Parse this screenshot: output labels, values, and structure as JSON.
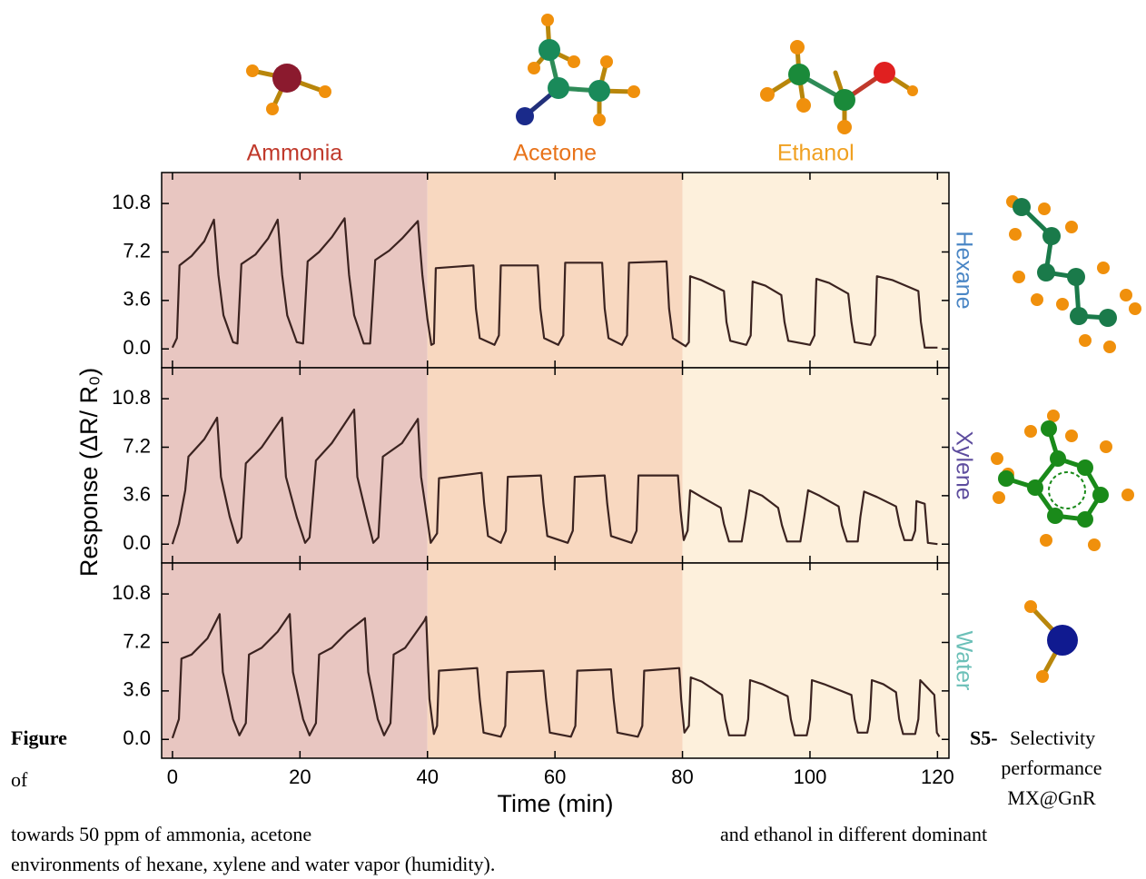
{
  "figure": {
    "ylabel": "Response (ΔR/ R₀)",
    "regions": [
      {
        "label": "Ammonia",
        "color": "#e8c6c1",
        "text_color": "#c0392b"
      },
      {
        "label": "Acetone",
        "color": "#f8d8c0",
        "text_color": "#e8731a"
      },
      {
        "label": "Ethanol",
        "color": "#fdf0dc",
        "text_color": "#f0a020"
      }
    ],
    "boundaries": [
      40,
      80
    ],
    "caption": {
      "figure": "Figure",
      "number": "S5-",
      "parts": [
        "Selectivity",
        "performance",
        "of",
        "MX@GnR",
        "towards 50 ppm of ammonia, acetone",
        "and ethanol in different dominant",
        "environments of hexane, xylene and water vapor (humidity)."
      ]
    }
  },
  "chart_data": [
    {
      "type": "line",
      "x": [
        0,
        0.7,
        1.1,
        3,
        5,
        6.5,
        7.2,
        8,
        9.5,
        10.2,
        10.8,
        13,
        15,
        16.5,
        17.2,
        18,
        19.5,
        20.5,
        21.2,
        23,
        25,
        27,
        27.7,
        28.5,
        30,
        31,
        31.8,
        34,
        36,
        38.5,
        39.2,
        40,
        40.6,
        41,
        41.3,
        47.2,
        47.6,
        48.2,
        50.5,
        51.2,
        51.5,
        57.3,
        57.7,
        58.3,
        60.5,
        61.3,
        61.6,
        67.4,
        67.8,
        68.4,
        70.5,
        71.3,
        71.6,
        77.5,
        77.9,
        78.5,
        80.5,
        81,
        81.2,
        83,
        86.5,
        86.9,
        87.5,
        90,
        90.7,
        91,
        93,
        95.5,
        96,
        96.6,
        100,
        100.7,
        101,
        103,
        106,
        106.5,
        107,
        109.5,
        110.2,
        110.5,
        113,
        117,
        117.4,
        118,
        120
      ],
      "series": [
        {
          "name": "Hexane",
          "color": "#3b2320",
          "label_color": "#4a86c5",
          "values": [
            0.1,
            0.8,
            6.2,
            6.9,
            8,
            9.6,
            5.5,
            2.5,
            0.5,
            0.4,
            6.3,
            7,
            8.2,
            9.6,
            5.5,
            2.5,
            0.5,
            0.4,
            6.5,
            7.2,
            8.3,
            9.7,
            5.5,
            2.5,
            0.4,
            0.4,
            6.6,
            7.3,
            8.2,
            9.5,
            5.5,
            2.2,
            0.3,
            0.4,
            6.0,
            6.2,
            3,
            0.8,
            0.3,
            1,
            6.2,
            6.2,
            3,
            0.8,
            0.3,
            1,
            6.4,
            6.4,
            3,
            0.8,
            0.3,
            1,
            6.4,
            6.5,
            3,
            0.8,
            0.2,
            0.5,
            5.4,
            5.1,
            4.3,
            2,
            0.6,
            0.3,
            1,
            5.0,
            4.7,
            4.0,
            2,
            0.6,
            0.3,
            1,
            5.2,
            4.9,
            4.1,
            2,
            0.5,
            0.3,
            1,
            5.4,
            5.1,
            4.3,
            2,
            0.1,
            0.1
          ]
        }
      ],
      "ylim": [
        -1.4,
        13.1
      ],
      "yticks": [
        {
          "value": 0,
          "label": "0.0"
        },
        3.6,
        7.2,
        10.8
      ]
    },
    {
      "type": "line",
      "x": [
        0,
        1,
        2,
        2.5,
        5,
        7,
        7.6,
        9,
        10.2,
        10.8,
        11.5,
        14,
        17.2,
        17.8,
        19.5,
        20.8,
        21.5,
        22.5,
        25,
        28.5,
        29,
        30.5,
        31.5,
        32.3,
        33,
        36,
        38.5,
        39,
        40,
        40.5,
        41.5,
        41.8,
        48.5,
        48.9,
        49.5,
        51.5,
        52.3,
        52.6,
        57.8,
        58.2,
        58.8,
        62,
        62.8,
        63.1,
        67.8,
        68.2,
        68.8,
        72,
        72.8,
        73.1,
        79.3,
        79.7,
        80.2,
        80.8,
        81.2,
        83,
        86,
        86.5,
        87.3,
        89.3,
        89.9,
        90.5,
        92.5,
        95,
        95.6,
        96.4,
        98.5,
        99.1,
        99.7,
        101.5,
        104.5,
        105,
        105.8,
        107.5,
        107.9,
        108.5,
        110.5,
        113.5,
        114.1,
        114.8,
        116,
        116.5,
        116.7,
        118,
        118.5,
        120
      ],
      "series": [
        {
          "name": "Xylene",
          "color": "#3b2320",
          "label_color": "#5d4c9e",
          "values": [
            0,
            1.5,
            4,
            6.5,
            7.8,
            9.4,
            5,
            2,
            0.1,
            0.5,
            6,
            7.2,
            9.4,
            5,
            2,
            0.1,
            0.5,
            6.2,
            7.5,
            10,
            5,
            2,
            0.1,
            0.5,
            6.5,
            7.5,
            9.3,
            5,
            1.8,
            0.1,
            0.8,
            4.9,
            5.3,
            3,
            0.6,
            0.1,
            1,
            5.0,
            5.1,
            3,
            0.6,
            0.1,
            1,
            5.0,
            5.1,
            3,
            0.6,
            0.1,
            1,
            5.1,
            5.1,
            2.5,
            0.3,
            1.0,
            4.0,
            3.5,
            2.7,
            1.5,
            0.2,
            0.2,
            2,
            4.0,
            3.6,
            2.7,
            1.4,
            0.2,
            0.2,
            2,
            4.0,
            3.6,
            2.8,
            1.4,
            0.2,
            0.2,
            2,
            3.9,
            3.5,
            2.8,
            1.4,
            0.3,
            0.3,
            1,
            3.2,
            3.0,
            0.1,
            0
          ]
        }
      ],
      "ylim": [
        -1.4,
        13.1
      ],
      "yticks": [
        {
          "value": 0,
          "label": "0.0"
        },
        3.6,
        7.2,
        10.8
      ]
    },
    {
      "type": "line",
      "x": [
        0,
        1,
        1.4,
        3,
        5.5,
        7.4,
        7.9,
        9.5,
        10.5,
        11.5,
        12,
        14,
        16.5,
        18.4,
        18.9,
        20.5,
        21.5,
        22.5,
        23,
        25,
        27.5,
        30.2,
        30.7,
        32.2,
        33.2,
        34.2,
        34.7,
        36.5,
        39.5,
        39.8,
        40.3,
        41,
        41.5,
        41.8,
        47.8,
        48.2,
        48.8,
        51.5,
        52.2,
        52.5,
        58.2,
        58.6,
        59.2,
        62.5,
        63.2,
        63.5,
        68.8,
        69.2,
        69.8,
        73,
        73.7,
        74,
        79.5,
        79.8,
        80.3,
        81,
        81.3,
        83,
        86.2,
        86.7,
        87.3,
        89.8,
        90.3,
        90.6,
        92.5,
        96.5,
        97,
        97.6,
        99.5,
        100,
        100.3,
        102.2,
        106.5,
        107,
        107.5,
        109,
        109.4,
        109.7,
        111.5,
        113.5,
        114,
        114.6,
        116.5,
        117,
        117.3,
        119.5,
        119.9,
        120.3
      ],
      "series": [
        {
          "name": "Water",
          "color": "#3b2320",
          "label_color": "#6cc0b8",
          "values": [
            0.1,
            1.5,
            6.0,
            6.3,
            7.5,
            9.3,
            5,
            1.5,
            0.3,
            1.2,
            6.3,
            6.8,
            8,
            9.3,
            5,
            1.5,
            0.3,
            1.2,
            6.3,
            6.8,
            8,
            9.0,
            5,
            1.5,
            0.3,
            1.2,
            6.3,
            6.8,
            8.8,
            9.1,
            3,
            0.4,
            1,
            5.1,
            5.3,
            3,
            0.5,
            0.2,
            1,
            5.0,
            5.1,
            3,
            0.5,
            0.2,
            1,
            5.1,
            5.2,
            3,
            0.5,
            0.2,
            1,
            5.1,
            5.3,
            3,
            0.5,
            1,
            4.6,
            4.3,
            3.3,
            1.5,
            0.3,
            0.3,
            1.5,
            4.4,
            4.1,
            3.2,
            1.5,
            0.3,
            0.3,
            1.5,
            4.4,
            4.1,
            3.3,
            1.5,
            0.5,
            0.5,
            1.5,
            4.4,
            4.1,
            3.5,
            1.5,
            0.4,
            0.4,
            1.5,
            4.4,
            3.3,
            0.5,
            0.2
          ]
        }
      ],
      "ylim": [
        -1.4,
        13.1
      ],
      "yticks": [
        {
          "value": 0,
          "label": "0.0"
        },
        3.6,
        7.2,
        10.8
      ],
      "xlim": [
        -1.7,
        121.8
      ],
      "xticks": [
        0,
        20,
        40,
        60,
        80,
        100,
        120
      ],
      "xlabel": "Time (min)"
    }
  ]
}
